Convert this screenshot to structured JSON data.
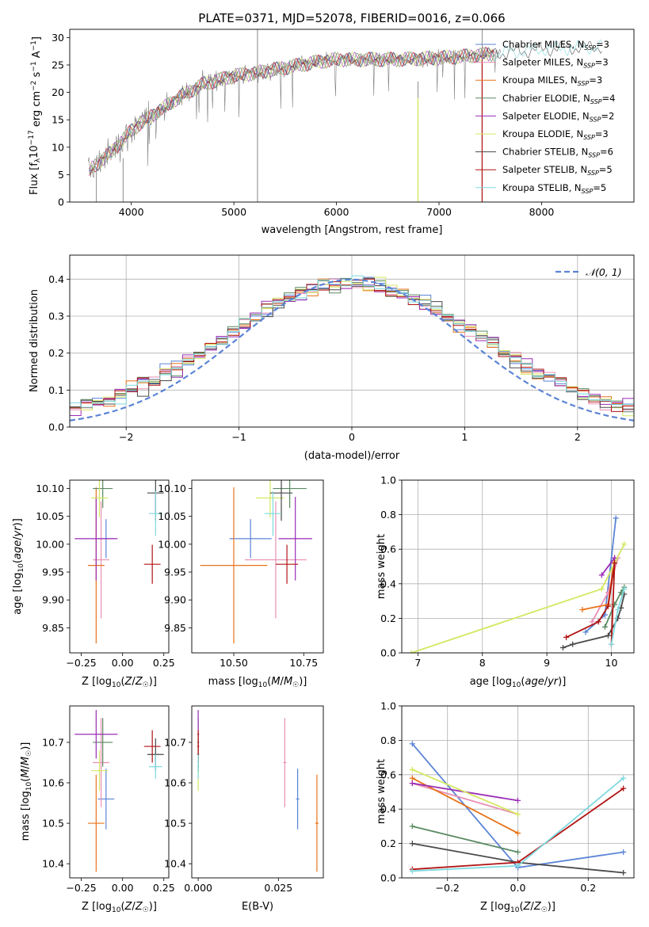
{
  "colors": {
    "chab_miles": "#5b84d6",
    "salp_miles": "#e88fb4",
    "krou_miles": "#e8731a",
    "chab_elodie": "#5a8a62",
    "salp_elodie": "#9a2db5",
    "krou_elodie": "#d4e860",
    "chab_stelib": "#4a4a4a",
    "salp_stelib": "#b11313",
    "krou_stelib": "#7fd9de",
    "grid": "#b0b0b0"
  },
  "chart_data": [
    {
      "type": "line",
      "title": "PLATE=0371, MJD=52078, FIBERID=0016, z=0.066",
      "xlabel": "wavelength [Angstrom, rest frame]",
      "ylabel": "Flux [f_λ 10^-17 erg cm^-2 s^-1 A^-1]",
      "xlim": [
        3400,
        8900
      ],
      "ylim": [
        0,
        31.5
      ],
      "xticks": [
        4000,
        5000,
        6000,
        7000,
        8000
      ],
      "yticks": [
        0,
        5,
        10,
        15,
        20,
        25,
        30
      ],
      "continuum": {
        "x": [
          3580,
          3700,
          3800,
          3900,
          4000,
          4100,
          4300,
          4500,
          4700,
          5000,
          5200,
          5500,
          5800,
          6000,
          6300,
          6600,
          6900,
          7200,
          7500,
          7800,
          8100,
          8400,
          8600
        ],
        "y": [
          5.5,
          7.5,
          9.0,
          11.0,
          13.0,
          14.5,
          17.0,
          19.5,
          21.5,
          23.0,
          23.5,
          24.5,
          25.5,
          26.0,
          26.0,
          26.0,
          26.2,
          26.5,
          27.0,
          27.5,
          28.0,
          28.2,
          28.4
        ]
      },
      "spikes": [
        {
          "x": 5230,
          "y0": 0,
          "y1": 31.5
        },
        {
          "x": 6795,
          "y0": 0,
          "y1": 22
        },
        {
          "x": 7420,
          "y0": 0,
          "y1": 31.5
        },
        {
          "x": 3660,
          "y0": 0,
          "y1": 6
        },
        {
          "x": 3920,
          "y0": 0,
          "y1": 8
        }
      ],
      "legend": [
        {
          "label": "Chabrier MILES, N",
          "sub": "SSP",
          "n": "=3",
          "color_key": "chab_miles"
        },
        {
          "label": "Salpeter MILES, N",
          "sub": "SSP",
          "n": "=3",
          "color_key": "salp_miles"
        },
        {
          "label": "Kroupa MILES, N",
          "sub": "SSP",
          "n": "=3",
          "color_key": "krou_miles"
        },
        {
          "label": "Chabrier ELODIE, N",
          "sub": "SSP",
          "n": "=4",
          "color_key": "chab_elodie"
        },
        {
          "label": "Salpeter ELODIE, N",
          "sub": "SSP",
          "n": "=2",
          "color_key": "salp_elodie"
        },
        {
          "label": "Kroupa ELODIE, N",
          "sub": "SSP",
          "n": "=3",
          "color_key": "krou_elodie"
        },
        {
          "label": "Chabrier STELIB, N",
          "sub": "SSP",
          "n": "=6",
          "color_key": "chab_stelib"
        },
        {
          "label": "Salpeter STELIB, N",
          "sub": "SSP",
          "n": "=5",
          "color_key": "salp_stelib"
        },
        {
          "label": "Kroupa STELIB, N",
          "sub": "SSP",
          "n": "=5",
          "color_key": "krou_stelib"
        }
      ]
    },
    {
      "type": "histogram",
      "xlabel": "(data-model)/error",
      "ylabel": "Normed distribution",
      "xlim": [
        -2.5,
        2.5
      ],
      "ylim": [
        0,
        0.465
      ],
      "xticks": [
        -2,
        -1,
        0,
        1,
        2
      ],
      "yticks": [
        0.0,
        0.1,
        0.2,
        0.3,
        0.4
      ],
      "bin_width": 0.1,
      "gaussian_label": "𝒩(0, 1)",
      "gaussian_color": "#5b84d6"
    },
    {
      "type": "scatter",
      "xlabel": "Z [log10(Z/Z☉)]",
      "ylabel": "age [log10(age/yr)]",
      "xlim": [
        -0.32,
        0.28
      ],
      "ylim": [
        9.805,
        10.115
      ],
      "xticks": [
        -0.25,
        0.0,
        0.25
      ],
      "xticklabels": [
        "−0.25",
        "0.00",
        "0.25"
      ],
      "yticks": [
        9.85,
        9.9,
        9.95,
        10.0,
        10.05,
        10.1
      ],
      "yticklabels": [
        "9.85",
        "9.90",
        "9.95",
        "10.00",
        "10.05",
        "10.10"
      ]
    },
    {
      "type": "scatter",
      "xlabel": "mass [log10(M/M☉)]",
      "ylabel": "",
      "xlim": [
        10.35,
        10.82
      ],
      "ylim": [
        9.805,
        10.115
      ],
      "xticks": [
        10.5,
        10.75
      ],
      "xticklabels": [
        "10.50",
        "10.75"
      ],
      "yticks": [
        9.85,
        9.9,
        9.95,
        10.0,
        10.05,
        10.1
      ],
      "yticklabels": [
        "9.85",
        "9.90",
        "9.95",
        "10.00",
        "10.05",
        "10.10"
      ]
    },
    {
      "type": "line",
      "xlabel": "age [log10(age/yr)]",
      "ylabel": "mass weight",
      "xlim": [
        6.75,
        10.35
      ],
      "ylim": [
        0,
        1.0
      ],
      "xticks": [
        7,
        8,
        9,
        10
      ],
      "yticks": [
        0.0,
        0.2,
        0.4,
        0.6,
        0.8,
        1.0
      ]
    },
    {
      "type": "scatter",
      "xlabel": "Z [log10(Z/Z☉)]",
      "ylabel": "mass [log10(M/M☉)]",
      "xlim": [
        -0.32,
        0.28
      ],
      "ylim": [
        10.365,
        10.79
      ],
      "xticks": [
        -0.25,
        0.0,
        0.25
      ],
      "xticklabels": [
        "−0.25",
        "0.00",
        "0.25"
      ],
      "yticks": [
        10.4,
        10.5,
        10.6,
        10.7
      ],
      "yticklabels": [
        "10.4",
        "10.5",
        "10.6",
        "10.7"
      ]
    },
    {
      "type": "scatter",
      "xlabel": "E(B-V)",
      "ylabel": "",
      "xlim": [
        -0.002,
        0.039
      ],
      "ylim": [
        10.365,
        10.79
      ],
      "xticks": [
        0.0,
        0.025
      ],
      "xticklabels": [
        "0.000",
        "0.025"
      ],
      "yticks": [
        10.4,
        10.5,
        10.6,
        10.7
      ],
      "yticklabels": [
        "10.4",
        "10.5",
        "10.6",
        "10.7"
      ]
    },
    {
      "type": "line",
      "xlabel": "Z [log10(Z/Z☉)]",
      "ylabel": "mass weight",
      "xlim": [
        -0.33,
        0.33
      ],
      "ylim": [
        0,
        1.0
      ],
      "xticks": [
        -0.2,
        0.0,
        0.2
      ],
      "xticklabels": [
        "−0.2",
        "0.0",
        "0.2"
      ],
      "yticks": [
        0.0,
        0.2,
        0.4,
        0.6,
        0.8,
        1.0
      ]
    }
  ],
  "models": [
    {
      "key": "chab_miles",
      "Z": -0.1,
      "Zerr": 0.05,
      "age": 10.01,
      "ageErr": 0.035,
      "mass": 10.56,
      "massErr": 0.075,
      "ebv": 0.031,
      "ebvErr": 0.0005
    },
    {
      "key": "salp_miles",
      "Z": -0.13,
      "Zerr": 0.05,
      "age": 9.972,
      "ageErr": 0.105,
      "mass": 10.65,
      "massErr": 0.11,
      "ebv": 0.027,
      "ebvErr": 0.0005
    },
    {
      "key": "krou_miles",
      "Z": -0.16,
      "Zerr": 0.05,
      "age": 9.962,
      "ageErr": 0.14,
      "mass": 10.5,
      "massErr": 0.12,
      "ebv": 0.037,
      "ebvErr": 0.0005
    },
    {
      "key": "chab_elodie",
      "Z": -0.12,
      "Zerr": 0.06,
      "age": 10.1,
      "ageErr": 0.035,
      "mass": 10.7,
      "massErr": 0.06,
      "ebv": 0.0,
      "ebvErr": 0.0003
    },
    {
      "key": "salp_elodie",
      "Z": -0.16,
      "Zerr": 0.13,
      "age": 10.01,
      "ageErr": 0.075,
      "mass": 10.72,
      "massErr": 0.06,
      "ebv": 0.0,
      "ebvErr": 0.0003
    },
    {
      "key": "krou_elodie",
      "Z": -0.14,
      "Zerr": 0.05,
      "age": 10.083,
      "ageErr": 0.035,
      "mass": 10.63,
      "massErr": 0.05,
      "ebv": 0.0,
      "ebvErr": 0.0003
    },
    {
      "key": "chab_stelib",
      "Z": 0.2,
      "Zerr": 0.05,
      "age": 10.092,
      "ageErr": 0.05,
      "mass": 10.67,
      "massErr": 0.04,
      "ebv": 0.0,
      "ebvErr": 0.0003
    },
    {
      "key": "salp_stelib",
      "Z": 0.18,
      "Zerr": 0.05,
      "age": 9.964,
      "ageErr": 0.035,
      "mass": 10.69,
      "massErr": 0.04,
      "ebv": 0.0,
      "ebvErr": 0.0003
    },
    {
      "key": "krou_stelib",
      "Z": 0.2,
      "Zerr": 0.04,
      "age": 10.055,
      "ageErr": 0.04,
      "mass": 10.64,
      "massErr": 0.03,
      "ebv": 0.0,
      "ebvErr": 0.0003
    }
  ],
  "ssp_age_weights": [
    {
      "key": "chab_miles",
      "pts": [
        [
          9.6,
          0.12
        ],
        [
          9.9,
          0.22
        ],
        [
          10.07,
          0.78
        ]
      ]
    },
    {
      "key": "salp_miles",
      "pts": [
        [
          9.7,
          0.18
        ],
        [
          9.95,
          0.35
        ],
        [
          10.1,
          0.55
        ]
      ]
    },
    {
      "key": "krou_miles",
      "pts": [
        [
          9.55,
          0.25
        ],
        [
          9.95,
          0.28
        ],
        [
          10.05,
          0.55
        ]
      ]
    },
    {
      "key": "chab_elodie",
      "pts": [
        [
          9.9,
          0.15
        ],
        [
          10.05,
          0.28
        ],
        [
          10.15,
          0.35
        ],
        [
          10.2,
          0.38
        ]
      ]
    },
    {
      "key": "salp_elodie",
      "pts": [
        [
          9.85,
          0.45
        ],
        [
          10.05,
          0.55
        ]
      ]
    },
    {
      "key": "krou_elodie",
      "pts": [
        [
          6.9,
          0.0
        ],
        [
          9.85,
          0.37
        ],
        [
          10.2,
          0.63
        ]
      ]
    },
    {
      "key": "chab_stelib",
      "pts": [
        [
          9.25,
          0.03
        ],
        [
          9.4,
          0.05
        ],
        [
          9.95,
          0.1
        ],
        [
          10.1,
          0.2
        ],
        [
          10.15,
          0.26
        ],
        [
          10.2,
          0.34
        ]
      ]
    },
    {
      "key": "salp_stelib",
      "pts": [
        [
          9.3,
          0.09
        ],
        [
          9.8,
          0.18
        ],
        [
          9.95,
          0.27
        ],
        [
          10.05,
          0.52
        ],
        [
          10.0,
          0.05
        ]
      ]
    },
    {
      "key": "krou_stelib",
      "pts": [
        [
          10.0,
          0.05
        ],
        [
          10.1,
          0.25
        ],
        [
          10.2,
          0.37
        ]
      ]
    }
  ],
  "ssp_z_weights": [
    {
      "key": "chab_miles",
      "pts": [
        [
          -0.3,
          0.78
        ],
        [
          0.0,
          0.06
        ],
        [
          0.3,
          0.15
        ]
      ]
    },
    {
      "key": "salp_miles",
      "pts": [
        [
          -0.3,
          0.55
        ],
        [
          0.0,
          0.37
        ]
      ]
    },
    {
      "key": "krou_miles",
      "pts": [
        [
          -0.3,
          0.58
        ],
        [
          0.0,
          0.26
        ]
      ]
    },
    {
      "key": "chab_elodie",
      "pts": [
        [
          -0.3,
          0.3
        ],
        [
          0.0,
          0.15
        ]
      ]
    },
    {
      "key": "salp_elodie",
      "pts": [
        [
          -0.3,
          0.55
        ],
        [
          0.0,
          0.45
        ]
      ]
    },
    {
      "key": "krou_elodie",
      "pts": [
        [
          -0.3,
          0.63
        ],
        [
          0.0,
          0.37
        ]
      ]
    },
    {
      "key": "chab_stelib",
      "pts": [
        [
          -0.3,
          0.2
        ],
        [
          0.0,
          0.09
        ],
        [
          0.3,
          0.03
        ]
      ]
    },
    {
      "key": "salp_stelib",
      "pts": [
        [
          -0.3,
          0.05
        ],
        [
          0.0,
          0.09
        ],
        [
          0.3,
          0.52
        ]
      ]
    },
    {
      "key": "krou_stelib",
      "pts": [
        [
          -0.3,
          0.04
        ],
        [
          0.0,
          0.07
        ],
        [
          0.3,
          0.58
        ]
      ]
    }
  ]
}
